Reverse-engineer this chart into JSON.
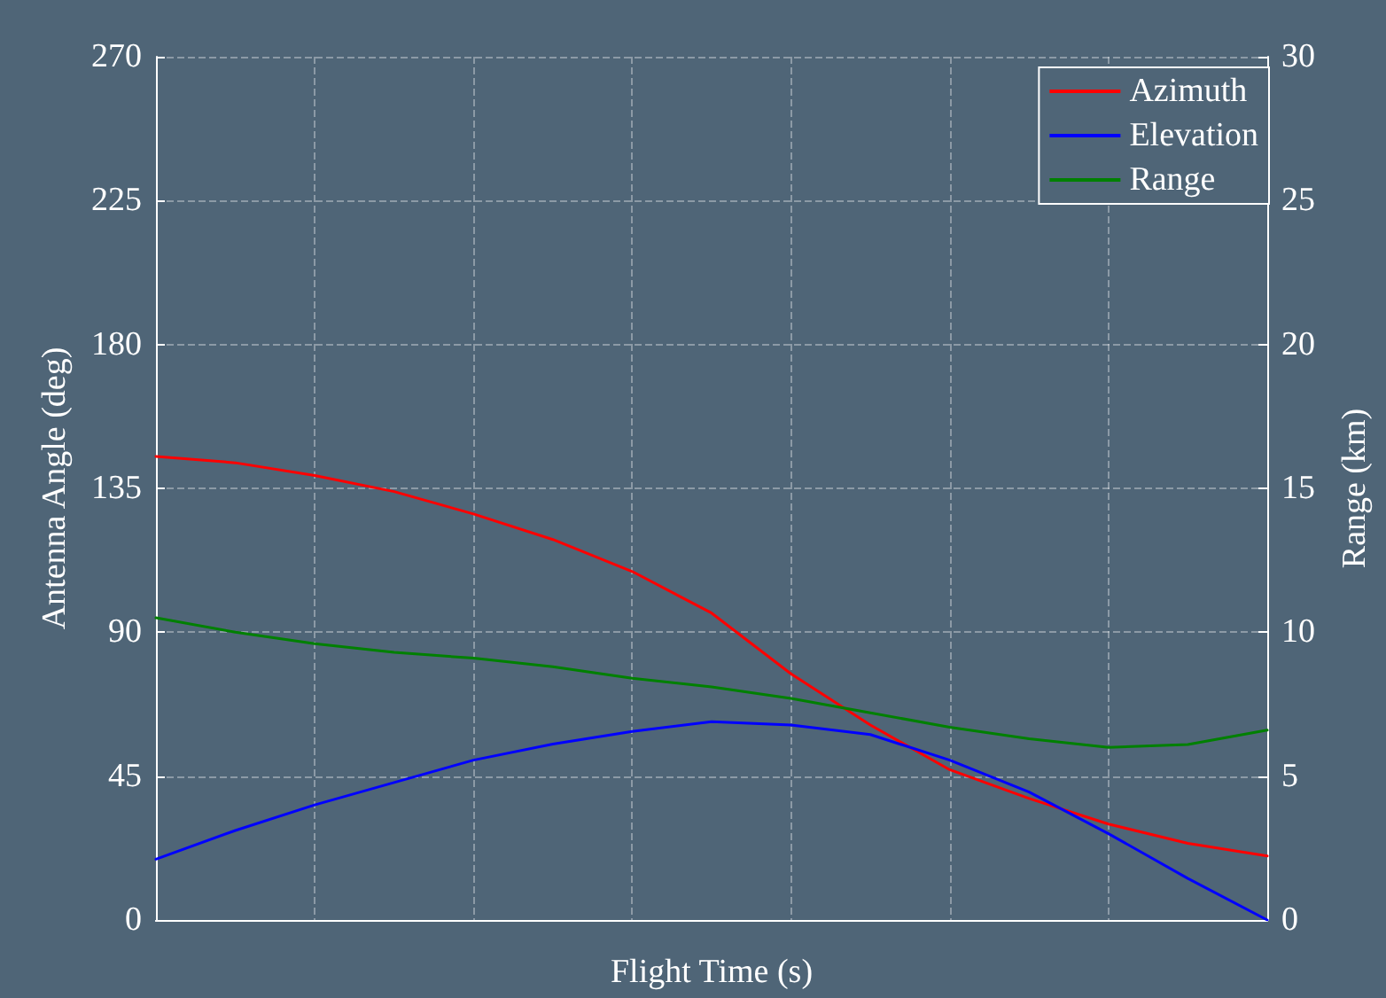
{
  "chart_data": {
    "type": "line",
    "xlabel": "Flight Time (s)",
    "ylabel": "Antenna Angle (deg)",
    "y2label": "Range (km)",
    "categories": [
      null,
      null,
      null,
      null,
      null,
      null,
      null,
      null,
      null,
      null,
      null,
      null,
      null,
      null,
      null
    ],
    "series": [
      {
        "name": "Azimuth",
        "color": "#ff0000",
        "values": [
          145,
          143,
          139,
          134,
          127,
          119,
          109,
          96,
          77,
          61,
          47,
          38,
          30,
          24,
          20
        ]
      },
      {
        "name": "Elevation",
        "color": "#0000ff",
        "values": [
          19,
          28,
          36,
          43,
          50,
          55,
          59,
          62,
          61,
          58,
          50,
          40,
          27,
          13,
          0
        ]
      },
      {
        "name": "Range",
        "color": "#008000",
        "axis": "y2",
        "values": [
          10.5,
          10.0,
          9.6,
          9.3,
          9.1,
          8.8,
          8.4,
          8.1,
          7.7,
          7.2,
          6.7,
          6.3,
          6.0,
          6.1,
          6.6
        ]
      }
    ],
    "ylim": [
      0,
      270
    ],
    "yticks": [
      0,
      45,
      90,
      135,
      180,
      225,
      270
    ],
    "y2lim": [
      0,
      30
    ],
    "y2ticks": [
      0,
      5,
      10,
      15,
      20,
      25,
      30
    ],
    "grid": true,
    "legend": "top right",
    "tick_labels": "y"
  }
}
